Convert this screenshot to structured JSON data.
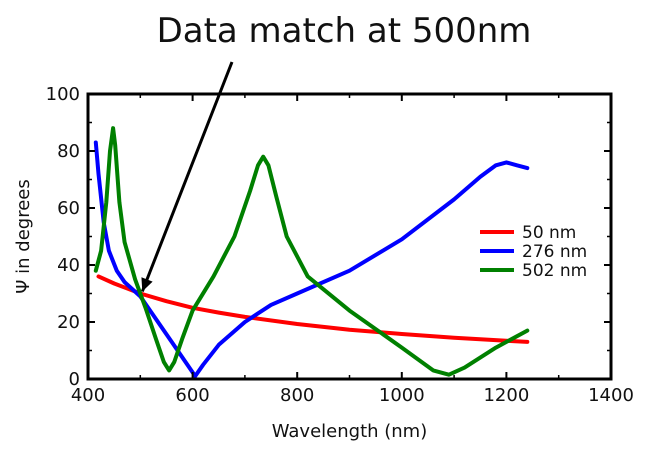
{
  "chart_data": {
    "type": "line",
    "xlabel": "Wavelength (nm)",
    "ylabel": "Ψ in degrees",
    "xlim": [
      400,
      1400
    ],
    "ylim": [
      0,
      100
    ],
    "x_ticks": [
      400,
      600,
      800,
      1000,
      1200,
      1400
    ],
    "y_ticks": [
      0,
      20,
      40,
      60,
      80,
      100
    ],
    "grid": false,
    "legend_position": "center-right",
    "annotation": {
      "text": "Data match at 500nm",
      "x": 500,
      "y": 30
    },
    "series": [
      {
        "name": "50 nm",
        "color": "#ff0000",
        "x": [
          420,
          450,
          500,
          550,
          600,
          650,
          700,
          800,
          900,
          1000,
          1100,
          1200,
          1240
        ],
        "y": [
          36,
          33.5,
          30,
          27.3,
          25,
          23.3,
          21.8,
          19.3,
          17.3,
          15.8,
          14.5,
          13.4,
          13
        ]
      },
      {
        "name": "276 nm",
        "color": "#0000ff",
        "x": [
          415,
          420,
          430,
          440,
          455,
          470,
          500,
          530,
          560,
          590,
          605,
          620,
          650,
          700,
          750,
          800,
          900,
          1000,
          1100,
          1150,
          1180,
          1200,
          1220,
          1240
        ],
        "y": [
          83,
          72,
          55,
          45,
          38,
          34,
          29,
          21,
          13,
          5,
          1,
          5,
          12,
          20,
          26,
          30,
          38,
          49,
          63,
          71,
          75,
          76,
          75,
          74
        ]
      },
      {
        "name": "502 nm",
        "color": "#008000",
        "x": [
          415,
          425,
          435,
          442,
          448,
          452,
          460,
          470,
          490,
          510,
          530,
          545,
          555,
          565,
          580,
          600,
          640,
          680,
          710,
          725,
          735,
          745,
          760,
          780,
          820,
          900,
          1000,
          1060,
          1090,
          1120,
          1180,
          1240
        ],
        "y": [
          38,
          45,
          62,
          80,
          88,
          82,
          62,
          48,
          35,
          25,
          14,
          6,
          3,
          6,
          14,
          24,
          36,
          50,
          66,
          75,
          78,
          75,
          64,
          50,
          36,
          24,
          11,
          3,
          1.5,
          4,
          11,
          17
        ]
      }
    ]
  }
}
